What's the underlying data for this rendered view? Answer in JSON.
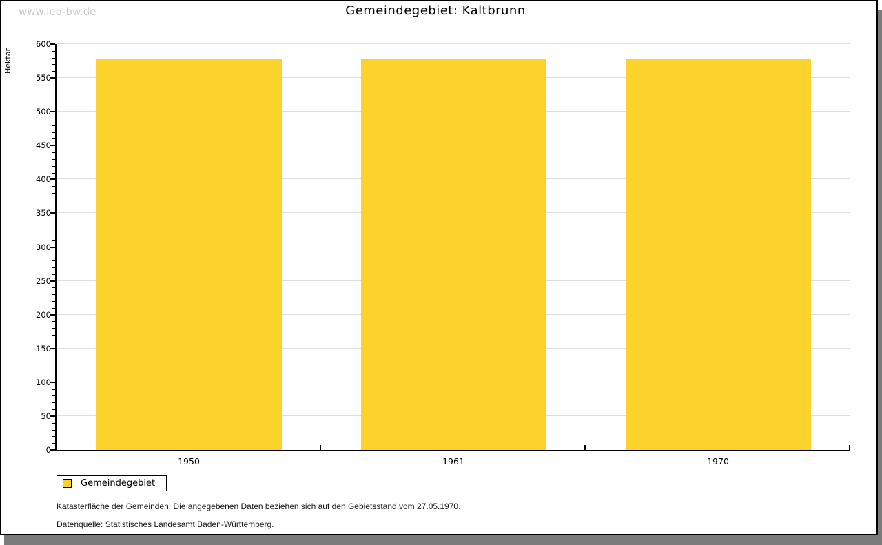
{
  "watermark": "www.leo-bw.de",
  "title": "Gemeindegebiet: Kaltbrunn",
  "chart_data": {
    "type": "bar",
    "title": "Gemeindegebiet: Kaltbrunn",
    "categories": [
      "1950",
      "1961",
      "1970"
    ],
    "series": [
      {
        "name": "Gemeindegebiet",
        "values": [
          578,
          578,
          578
        ]
      }
    ],
    "xlabel": "",
    "ylabel": "Hektar",
    "ylim": [
      0,
      600
    ],
    "ytick_step": 50,
    "yminor_tick_step": 10,
    "grid": true,
    "bar_color": "#fcd32d",
    "grid_color": "#dddddd",
    "legend_position": "bottom-left"
  },
  "legend": {
    "items": [
      {
        "label": "Gemeindegebiet",
        "color": "#fcd32d"
      }
    ]
  },
  "footer": {
    "line1": "Katasterfläche der Gemeinden. Die angegebenen Daten beziehen sich auf den Gebietsstand vom 27.05.1970.",
    "line2": "Datenquelle: Statistisches Landesamt Baden-Württemberg."
  }
}
